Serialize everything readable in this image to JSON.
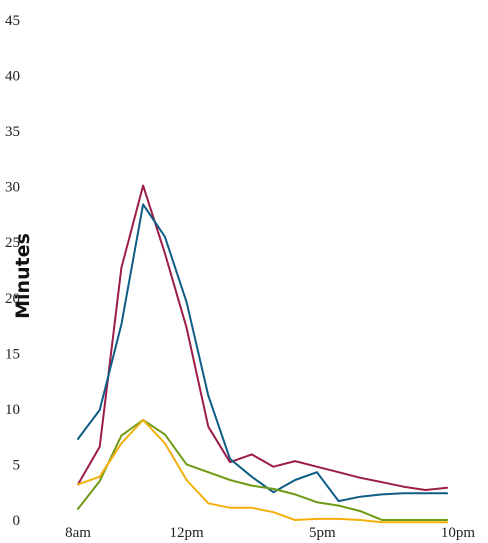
{
  "chart_data": {
    "type": "line",
    "ylabel": "Minutes",
    "xlabel": "",
    "ylim": [
      0,
      45
    ],
    "yticks": [
      0,
      5,
      10,
      15,
      20,
      25,
      30,
      35,
      40,
      45
    ],
    "xlim": [
      8,
      22
    ],
    "xticks": [
      {
        "value": 8,
        "label": "8am"
      },
      {
        "value": 12,
        "label": "12pm"
      },
      {
        "value": 17,
        "label": "5pm"
      },
      {
        "value": 22,
        "label": "10pm"
      }
    ],
    "grid": false,
    "series": [
      {
        "color": "#9b1d48",
        "x": [
          8,
          8.8,
          9.6,
          10.4,
          11.2,
          12.0,
          12.8,
          13.6,
          14.4,
          15.2,
          16.0,
          16.8,
          17.6,
          18.4,
          19.2,
          20.0,
          20.8,
          21.6
        ],
        "values": [
          3.2,
          6.6,
          22.7,
          30.1,
          24.0,
          17.3,
          8.4,
          5.2,
          5.9,
          4.8,
          5.3,
          4.8,
          4.3,
          3.8,
          3.4,
          3.0,
          2.7,
          2.9
        ]
      },
      {
        "color": "#0e5d86",
        "x": [
          8,
          8.8,
          9.6,
          10.4,
          11.2,
          12.0,
          12.8,
          13.6,
          14.4,
          15.2,
          16.0,
          16.8,
          17.6,
          18.4,
          19.2,
          20.0,
          20.8,
          21.6
        ],
        "values": [
          7.3,
          9.9,
          17.6,
          28.4,
          25.5,
          19.6,
          11.2,
          5.5,
          3.9,
          2.5,
          3.6,
          4.3,
          1.7,
          2.1,
          2.3,
          2.4,
          2.4,
          2.4
        ]
      },
      {
        "color": "#6e9a14",
        "x": [
          8,
          8.8,
          9.6,
          10.4,
          11.2,
          12.0,
          12.8,
          13.6,
          14.4,
          15.2,
          16.0,
          16.8,
          17.6,
          18.4,
          19.2,
          20.0,
          20.8,
          21.6
        ],
        "values": [
          1.0,
          3.5,
          7.6,
          9.0,
          7.7,
          5.0,
          4.3,
          3.6,
          3.1,
          2.8,
          2.3,
          1.6,
          1.3,
          0.8,
          0.0,
          0.0,
          0.0,
          0.0
        ]
      },
      {
        "color": "#f2b00b",
        "x": [
          8,
          8.8,
          9.6,
          10.4,
          11.2,
          12.0,
          12.8,
          13.6,
          14.4,
          15.2,
          16.0,
          16.8,
          17.6,
          18.4,
          19.2,
          20.0,
          20.8,
          21.6
        ],
        "values": [
          3.2,
          3.9,
          6.9,
          9.0,
          6.9,
          3.6,
          1.5,
          1.1,
          1.1,
          0.7,
          0.0,
          0.1,
          0.1,
          0.0,
          -0.2,
          -0.2,
          -0.2,
          -0.2
        ]
      }
    ]
  }
}
